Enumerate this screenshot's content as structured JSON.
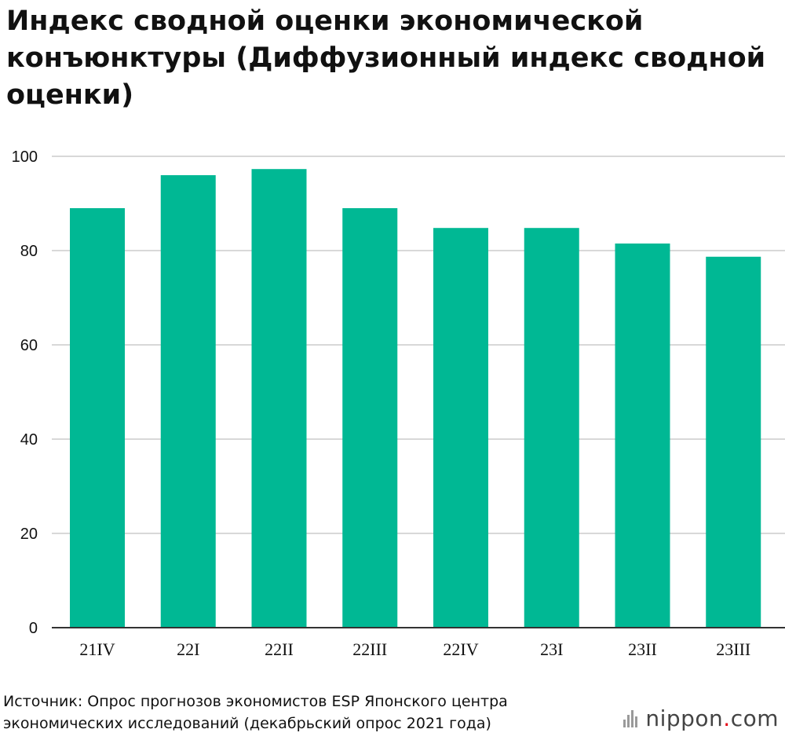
{
  "title": "Индекс сводной оценки экономической конъюнктуры (Диффузионный индекс сводной оценки)",
  "source": "Источник: Опрос прогнозов экономистов ESP Японского центра экономических исследований (декабрьский опрос 2021 года)",
  "brand": {
    "name": "nippon",
    "dot": ".",
    "suffix": "com"
  },
  "colors": {
    "bar": "#00b894",
    "grid": "#cccccc",
    "axis": "#333333"
  },
  "chart_data": {
    "type": "bar",
    "categories": [
      "21IV",
      "22I",
      "22II",
      "22III",
      "22IV",
      "23I",
      "23II",
      "23III"
    ],
    "values": [
      89.0,
      96.0,
      97.3,
      89.0,
      84.8,
      84.8,
      81.5,
      78.7
    ],
    "ylim": [
      0,
      100
    ],
    "yticks": [
      0,
      20,
      40,
      60,
      80,
      100
    ],
    "grid": true,
    "legend": "none"
  }
}
